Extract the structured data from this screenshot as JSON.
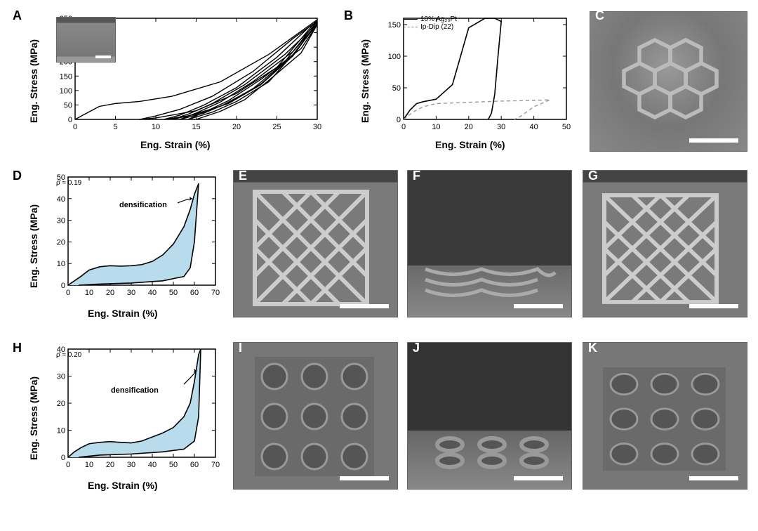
{
  "figure": {
    "background_color": "#ffffff",
    "line_color": "#000000",
    "fill_color": "#b8dcec",
    "sem_color": "#7a7a7a",
    "scale_bar_color": "#ffffff",
    "panel_label_fontsize": 18,
    "axis_label_fontsize": 14,
    "tick_fontsize": 12,
    "annotation_fontsize": 11
  },
  "panelA": {
    "label": "A",
    "type": "line",
    "xlabel": "Eng. Strain (%)",
    "ylabel": "Eng. Stress (MPa)",
    "xlim": [
      0,
      30
    ],
    "xtick_step": 5,
    "ylim": [
      0,
      350
    ],
    "ytick_step": 50,
    "xticks": [
      0,
      5,
      10,
      15,
      20,
      25,
      30
    ],
    "yticks": [
      0,
      50,
      100,
      150,
      200,
      250,
      300,
      350
    ],
    "inset_sem": true,
    "cycles": [
      {
        "load": [
          [
            0,
            0
          ],
          [
            2,
            30
          ],
          [
            3,
            45
          ],
          [
            5,
            55
          ],
          [
            8,
            62
          ],
          [
            12,
            80
          ],
          [
            18,
            130
          ],
          [
            24,
            225
          ],
          [
            30,
            345
          ]
        ],
        "unload": [
          [
            30,
            345
          ],
          [
            25,
            180
          ],
          [
            20,
            90
          ],
          [
            15,
            30
          ],
          [
            10,
            5
          ],
          [
            8,
            0
          ]
        ]
      },
      {
        "load": [
          [
            8,
            0
          ],
          [
            10,
            12
          ],
          [
            13,
            35
          ],
          [
            17,
            80
          ],
          [
            22,
            165
          ],
          [
            27,
            280
          ],
          [
            30,
            340
          ]
        ],
        "unload": [
          [
            30,
            340
          ],
          [
            26,
            200
          ],
          [
            22,
            105
          ],
          [
            18,
            45
          ],
          [
            14,
            12
          ],
          [
            11,
            0
          ]
        ]
      },
      {
        "load": [
          [
            11,
            0
          ],
          [
            13,
            15
          ],
          [
            16,
            50
          ],
          [
            20,
            110
          ],
          [
            25,
            215
          ],
          [
            29,
            320
          ],
          [
            30,
            335
          ]
        ],
        "unload": [
          [
            30,
            335
          ],
          [
            27,
            220
          ],
          [
            23,
            120
          ],
          [
            19,
            55
          ],
          [
            15,
            18
          ],
          [
            12,
            0
          ]
        ]
      },
      {
        "load": [
          [
            12,
            0
          ],
          [
            14,
            18
          ],
          [
            17,
            55
          ],
          [
            21,
            120
          ],
          [
            26,
            225
          ],
          [
            30,
            332
          ]
        ],
        "unload": [
          [
            30,
            332
          ],
          [
            27,
            222
          ],
          [
            23,
            122
          ],
          [
            19,
            58
          ],
          [
            16,
            22
          ],
          [
            13,
            0
          ]
        ]
      },
      {
        "load": [
          [
            13,
            0
          ],
          [
            15,
            22
          ],
          [
            18,
            60
          ],
          [
            22,
            130
          ],
          [
            27,
            235
          ],
          [
            30,
            330
          ]
        ],
        "unload": [
          [
            30,
            330
          ],
          [
            27,
            225
          ],
          [
            24,
            130
          ],
          [
            20,
            62
          ],
          [
            17,
            25
          ],
          [
            14,
            0
          ]
        ]
      },
      {
        "load": [
          [
            14,
            0
          ],
          [
            16,
            25
          ],
          [
            19,
            65
          ],
          [
            23,
            138
          ],
          [
            28,
            245
          ],
          [
            30,
            328
          ]
        ],
        "unload": [
          [
            30,
            328
          ],
          [
            28,
            230
          ],
          [
            24,
            135
          ],
          [
            21,
            68
          ],
          [
            18,
            28
          ],
          [
            15,
            0
          ]
        ]
      }
    ]
  },
  "panelB": {
    "label": "B",
    "type": "line",
    "xlabel": "Eng. Strain (%)",
    "ylabel": "Eng. Stress (MPa)",
    "xlim": [
      0,
      50
    ],
    "xtick_step": 10,
    "ylim": [
      0,
      160
    ],
    "ytick_step": 50,
    "xticks": [
      0,
      10,
      20,
      30,
      40,
      50
    ],
    "yticks": [
      0,
      50,
      100,
      150
    ],
    "legend": [
      {
        "label": "10% Ag₂₀Pt",
        "style": "solid"
      },
      {
        "label": "Ip-Dip (22)",
        "style": "dashed"
      }
    ],
    "series1": {
      "load": [
        [
          0,
          0
        ],
        [
          2,
          15
        ],
        [
          4,
          25
        ],
        [
          6,
          28
        ],
        [
          10,
          32
        ],
        [
          15,
          55
        ],
        [
          20,
          145
        ],
        [
          25,
          160
        ],
        [
          28,
          160
        ],
        [
          30,
          155
        ]
      ],
      "unload": [
        [
          30,
          155
        ],
        [
          29,
          100
        ],
        [
          28,
          40
        ],
        [
          27,
          10
        ],
        [
          26,
          0
        ]
      ]
    },
    "series2": {
      "load": [
        [
          0,
          0
        ],
        [
          3,
          12
        ],
        [
          6,
          20
        ],
        [
          10,
          25
        ],
        [
          20,
          27
        ],
        [
          30,
          29
        ],
        [
          40,
          30
        ],
        [
          45,
          31
        ]
      ],
      "unload": [
        [
          45,
          31
        ],
        [
          40,
          20
        ],
        [
          36,
          5
        ],
        [
          34,
          0
        ]
      ]
    }
  },
  "panelC": {
    "label": "C",
    "type": "sem"
  },
  "panelD": {
    "label": "D",
    "type": "line_filled",
    "xlabel": "Eng. Strain (%)",
    "ylabel": "Eng. Stress (MPa)",
    "xlim": [
      0,
      70
    ],
    "xtick_step": 10,
    "ylim": [
      0,
      50
    ],
    "ytick_step": 10,
    "xticks": [
      0,
      10,
      20,
      30,
      40,
      50,
      60,
      70
    ],
    "yticks": [
      0,
      10,
      20,
      30,
      40,
      50
    ],
    "rho_label": "ρ̄ ≈ 0.19",
    "annotation": "densification",
    "load": [
      [
        0,
        0
      ],
      [
        3,
        2
      ],
      [
        6,
        4
      ],
      [
        10,
        7
      ],
      [
        15,
        8.5
      ],
      [
        20,
        9
      ],
      [
        25,
        8.8
      ],
      [
        30,
        9
      ],
      [
        35,
        9.5
      ],
      [
        40,
        11
      ],
      [
        45,
        14
      ],
      [
        50,
        19
      ],
      [
        55,
        27
      ],
      [
        58,
        35
      ],
      [
        60,
        42
      ],
      [
        62,
        47
      ]
    ],
    "unload": [
      [
        62,
        47
      ],
      [
        60,
        20
      ],
      [
        58,
        8
      ],
      [
        55,
        4
      ],
      [
        45,
        2
      ],
      [
        30,
        1
      ],
      [
        15,
        0.5
      ],
      [
        5,
        0
      ]
    ]
  },
  "panelE": {
    "label": "E",
    "type": "sem"
  },
  "panelF": {
    "label": "F",
    "type": "sem"
  },
  "panelG": {
    "label": "G",
    "type": "sem"
  },
  "panelH": {
    "label": "H",
    "type": "line_filled",
    "xlabel": "Eng. Strain (%)",
    "ylabel": "Eng. Stress (MPa)",
    "xlim": [
      0,
      70
    ],
    "xtick_step": 10,
    "ylim": [
      0,
      40
    ],
    "ytick_step": 10,
    "xticks": [
      0,
      10,
      20,
      30,
      40,
      50,
      60,
      70
    ],
    "yticks": [
      0,
      10,
      20,
      30,
      40
    ],
    "rho_label": "ρ̄ ≈ 0.20",
    "annotation": "densification",
    "load": [
      [
        0,
        0
      ],
      [
        3,
        2
      ],
      [
        6,
        3.5
      ],
      [
        10,
        5
      ],
      [
        15,
        5.5
      ],
      [
        20,
        5.8
      ],
      [
        25,
        5.5
      ],
      [
        30,
        5.3
      ],
      [
        35,
        6
      ],
      [
        40,
        7.5
      ],
      [
        45,
        9
      ],
      [
        50,
        11
      ],
      [
        55,
        15
      ],
      [
        58,
        20
      ],
      [
        60,
        28
      ],
      [
        62,
        38
      ],
      [
        63,
        40
      ]
    ],
    "unload": [
      [
        63,
        40
      ],
      [
        62,
        15
      ],
      [
        60,
        6
      ],
      [
        55,
        3
      ],
      [
        45,
        2
      ],
      [
        30,
        1.2
      ],
      [
        15,
        0.8
      ],
      [
        5,
        0
      ]
    ]
  },
  "panelI": {
    "label": "I",
    "type": "sem"
  },
  "panelJ": {
    "label": "J",
    "type": "sem"
  },
  "panelK": {
    "label": "K",
    "type": "sem"
  }
}
